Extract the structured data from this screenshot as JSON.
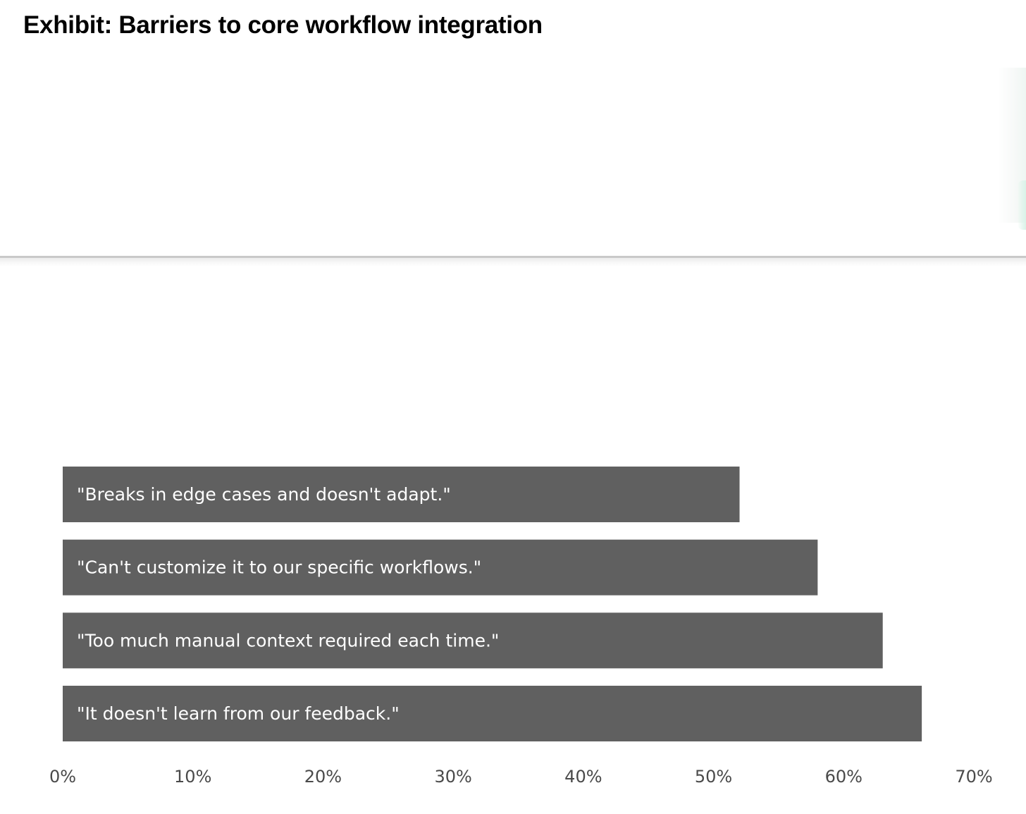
{
  "title": "Exhibit: Barriers to core workflow integration",
  "chart_data": {
    "type": "bar",
    "orientation": "horizontal",
    "title": "Exhibit: Barriers to core workflow integration",
    "xlabel": "",
    "ylabel": "",
    "xlim": [
      0,
      70
    ],
    "grid": false,
    "bar_color": "#606060",
    "bar_label_color": "#ffffff",
    "categories": [
      "\"Breaks in edge cases and doesn't adapt.\"",
      "\"Can't customize it to our specific workflows.\"",
      "\"Too much manual context required each time.\"",
      "\"It doesn't learn from our feedback.\""
    ],
    "values": [
      52,
      58,
      63,
      66
    ],
    "x_ticks": [
      0,
      10,
      20,
      30,
      40,
      50,
      60,
      70
    ],
    "x_tick_labels": [
      "0%",
      "10%",
      "20%",
      "30%",
      "40%",
      "50%",
      "60%",
      "70%"
    ]
  }
}
